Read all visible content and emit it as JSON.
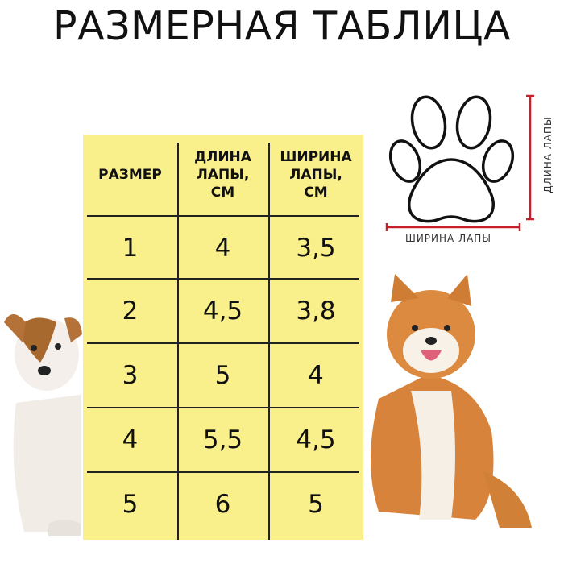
{
  "title": "РАЗМЕРНАЯ ТАБЛИЦА",
  "table": {
    "headers": [
      "РАЗМЕР",
      "ДЛИНА\nЛАПЫ,\nСМ",
      "ШИРИНА\nЛАПЫ,\nСМ"
    ],
    "rows": [
      [
        "1",
        "4",
        "3,5"
      ],
      [
        "2",
        "4,5",
        "3,8"
      ],
      [
        "3",
        "5",
        "4"
      ],
      [
        "4",
        "5,5",
        "4,5"
      ],
      [
        "5",
        "6",
        "5"
      ]
    ]
  },
  "diagram": {
    "width_label": "ШИРИНА ЛАПЫ",
    "length_label": "ДЛИНА ЛАПЫ",
    "icon": "paw-print-icon"
  },
  "colors": {
    "table_bg": "#f9ef8b",
    "measure_line": "#c8202a"
  }
}
